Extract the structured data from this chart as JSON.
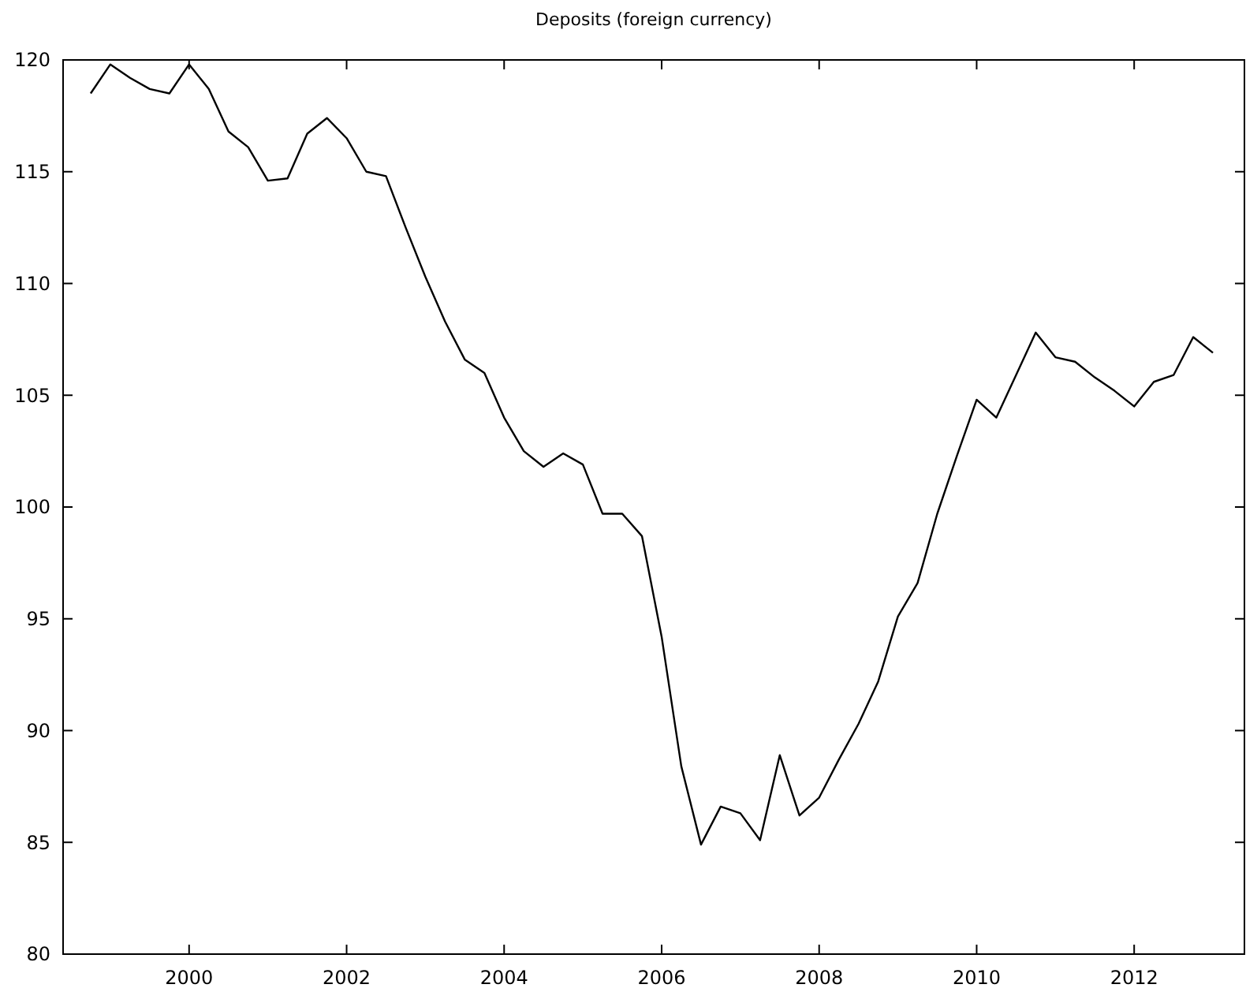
{
  "chart_data": {
    "type": "line",
    "title": "Deposits (foreign currency)",
    "x": [
      1998.75,
      1999,
      1999.25,
      1999.5,
      1999.75,
      2000,
      2000.25,
      2000.5,
      2000.75,
      2001,
      2001.25,
      2001.5,
      2001.75,
      2002,
      2002.25,
      2002.5,
      2002.75,
      2003,
      2003.25,
      2003.5,
      2003.75,
      2004,
      2004.25,
      2004.5,
      2004.75,
      2005,
      2005.25,
      2005.5,
      2005.75,
      2006,
      2006.25,
      2006.5,
      2006.75,
      2007,
      2007.25,
      2007.5,
      2007.75,
      2008,
      2008.25,
      2008.5,
      2008.75,
      2009,
      2009.25,
      2009.5,
      2009.75,
      2010,
      2010.25,
      2010.5,
      2010.75,
      2011,
      2011.25,
      2011.5,
      2011.75,
      2012,
      2012.25,
      2012.5,
      2012.75,
      2013
    ],
    "series": [
      {
        "color": "#000000",
        "values": [
          118.5,
          119.8,
          119.2,
          118.7,
          118.5,
          119.8,
          118.7,
          116.8,
          116.1,
          114.6,
          114.7,
          116.7,
          117.4,
          116.5,
          115.0,
          114.8,
          112.5,
          110.3,
          108.3,
          106.6,
          106.0,
          104.0,
          102.5,
          101.8,
          102.4,
          101.9,
          99.7,
          99.7,
          98.7,
          94.2,
          88.4,
          84.9,
          86.6,
          86.3,
          85.1,
          88.9,
          86.2,
          87.0,
          88.7,
          90.3,
          92.2,
          95.1,
          96.6,
          99.7,
          102.3,
          104.8,
          104.0,
          105.9,
          107.8,
          106.7,
          106.5,
          105.8,
          105.2,
          104.5,
          105.6,
          105.9,
          107.6,
          106.9
        ]
      }
    ],
    "xlim": [
      1998.4,
      2013.4
    ],
    "xticks": [
      2000,
      2002,
      2004,
      2006,
      2008,
      2010,
      2012
    ],
    "ylim": [
      80,
      120
    ],
    "yticks": [
      80,
      85,
      90,
      95,
      100,
      105,
      110,
      115,
      120
    ],
    "grid": false,
    "marker": "none",
    "line_style": "solid"
  }
}
